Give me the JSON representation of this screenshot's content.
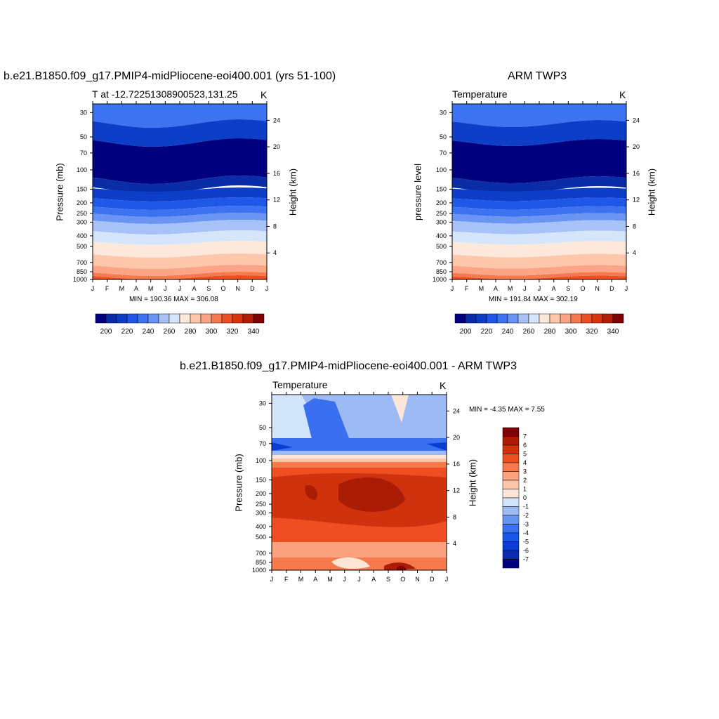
{
  "colors": {
    "temp_scale": [
      "#00007f",
      "#0a2ca6",
      "#0d3ec8",
      "#1f57e6",
      "#3d72f0",
      "#6a95f3",
      "#a6c2f6",
      "#d5e6fa",
      "#fde9dc",
      "#fcc7ab",
      "#fba586",
      "#f77a4f",
      "#ef4e22",
      "#d8340e",
      "#b31d05",
      "#7f0000"
    ],
    "diff_scale": [
      "#00007f",
      "#0b2ab0",
      "#0c3dd3",
      "#1a55ea",
      "#3a6ff0",
      "#6993f2",
      "#9dbaf5",
      "#d2e4fa",
      "#fde5d7",
      "#fcc6aa",
      "#fba37f",
      "#f77a4c",
      "#ef4e22",
      "#d0320d",
      "#aa1c04",
      "#7f0000"
    ]
  },
  "panels": [
    {
      "title": "b.e21.B1850.f09_g17.PMIP4-midPliocene-eoi400.001 (yrs 51-100)",
      "left_label": "T at -12.72251308900523,131.25",
      "right_label": "K",
      "ylabel": "Pressure (mb)",
      "ylabel_right": "Height (km)",
      "minmax": "MIN = 190.36 MAX = 306.08"
    },
    {
      "title": "ARM TWP3",
      "left_label": "Temperature",
      "right_label": "K",
      "ylabel": "pressure level",
      "ylabel_right": "Height (km)",
      "minmax": "MIN = 191.84 MAX = 302.19"
    },
    {
      "title": "b.e21.B1850.f09_g17.PMIP4-midPliocene-eoi400.001 - ARM TWP3",
      "left_label": "Temperature",
      "right_label": "K",
      "ylabel": "Pressure (mb)",
      "ylabel_right": "Height (km)",
      "minmax": "MIN =  -4.35 MAX =   7.55"
    }
  ],
  "chart_data": [
    {
      "type": "heatmap",
      "title": "b.e21.B1850.f09_g17.PMIP4-midPliocene-eoi400.001 (yrs 51-100)",
      "subtitle": "T at -12.72251308900523,131.25",
      "units": "K",
      "x_ticks": [
        "J",
        "F",
        "M",
        "A",
        "M",
        "J",
        "J",
        "A",
        "S",
        "O",
        "N",
        "D",
        "J"
      ],
      "y_ticks": [
        30,
        50,
        70,
        100,
        150,
        200,
        250,
        300,
        400,
        500,
        700,
        850,
        1000
      ],
      "y_scale": "log",
      "ylim": [
        1000,
        25
      ],
      "y2_ticks": [
        24,
        20,
        16,
        12,
        8,
        4
      ],
      "xlabel": "",
      "ylabel": "Pressure (mb)",
      "y2label": "Height (km)",
      "colorbar_ticks": [
        200,
        220,
        240,
        260,
        280,
        300,
        320,
        340
      ],
      "min": 190.36,
      "max": 306.08
    },
    {
      "type": "heatmap",
      "title": "ARM TWP3",
      "subtitle": "Temperature",
      "units": "K",
      "x_ticks": [
        "J",
        "F",
        "M",
        "A",
        "M",
        "J",
        "J",
        "A",
        "S",
        "O",
        "N",
        "D",
        "J"
      ],
      "y_ticks": [
        30,
        50,
        70,
        100,
        150,
        200,
        250,
        300,
        400,
        500,
        700,
        850,
        1000
      ],
      "y_scale": "log",
      "ylim": [
        1000,
        25
      ],
      "y2_ticks": [
        24,
        20,
        16,
        12,
        8,
        4
      ],
      "xlabel": "",
      "ylabel": "pressure level",
      "y2label": "Height (km)",
      "colorbar_ticks": [
        200,
        220,
        240,
        260,
        280,
        300,
        320,
        340
      ],
      "min": 191.84,
      "max": 302.19
    },
    {
      "type": "heatmap",
      "title": "b.e21.B1850.f09_g17.PMIP4-midPliocene-eoi400.001 - ARM TWP3",
      "subtitle": "Temperature",
      "units": "K",
      "x_ticks": [
        "J",
        "F",
        "M",
        "A",
        "M",
        "J",
        "J",
        "A",
        "S",
        "O",
        "N",
        "D",
        "J"
      ],
      "y_ticks": [
        30,
        50,
        70,
        100,
        150,
        200,
        250,
        300,
        400,
        500,
        700,
        850,
        1000
      ],
      "y_scale": "log",
      "ylim": [
        1000,
        25
      ],
      "y2_ticks": [
        24,
        20,
        16,
        12,
        8,
        4
      ],
      "xlabel": "",
      "ylabel": "Pressure (mb)",
      "y2label": "Height (km)",
      "colorbar_ticks": [
        7,
        6,
        5,
        4,
        3,
        2,
        1,
        0,
        -1,
        -2,
        -3,
        -4,
        -5,
        -6,
        -7
      ],
      "min": -4.35,
      "max": 7.55
    }
  ]
}
